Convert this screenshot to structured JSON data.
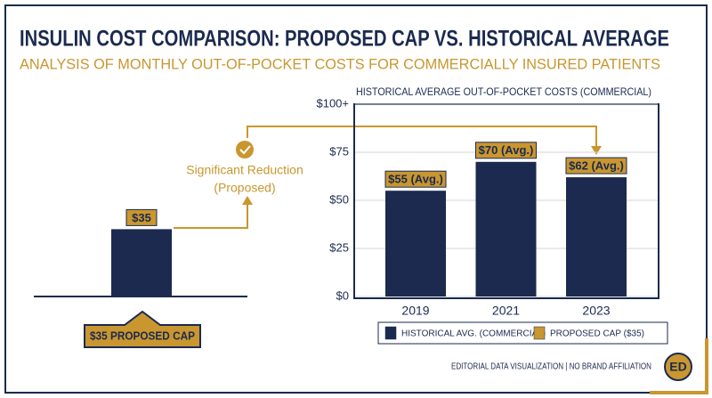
{
  "header": {
    "title": "INSULIN COST COMPARISON: PROPOSED CAP VS. HISTORICAL AVERAGE",
    "subtitle": "ANALYSIS OF MONTHLY OUT-OF-POCKET COSTS FOR COMMERCIALLY INSURED PATIENTS"
  },
  "chart_data": [
    {
      "type": "bar",
      "categories": [
        null
      ],
      "values": [
        35
      ],
      "value_labels": [
        "$35"
      ],
      "color": "#1b2a4e",
      "ylim": [
        0,
        100
      ],
      "callout": "$35 PROPOSED CAP",
      "annotation": [
        "Significant Reduction",
        "(Proposed)"
      ]
    },
    {
      "type": "bar",
      "title": "HISTORICAL AVERAGE OUT-OF-POCKET COSTS (COMMERCIAL)",
      "categories": [
        "2019",
        "2021",
        "2023"
      ],
      "values": [
        55,
        70,
        62
      ],
      "value_labels": [
        "$55 (Avg.)",
        "$70 (Avg.)",
        "$62 (Avg.)"
      ],
      "color": "#1b2a4e",
      "ylim": [
        0,
        100
      ],
      "yticks": [
        {
          "value": 0,
          "label": "$0"
        },
        {
          "value": 25,
          "label": "$25"
        },
        {
          "value": 50,
          "label": "$50"
        },
        {
          "value": 75,
          "label": "$75"
        },
        {
          "value": 100,
          "label": "$100+"
        }
      ],
      "grid": true,
      "legend": [
        {
          "label": "HISTORICAL AVG. (COMMERCIAL)",
          "color": "#1b2a4e"
        },
        {
          "label": "PROPOSED CAP ($35)",
          "color": "#c9962f"
        }
      ]
    }
  ],
  "footer": {
    "credit": "EDITORIAL DATA VISUALIZATION | NO BRAND AFFILIATION",
    "logo": "ED"
  }
}
